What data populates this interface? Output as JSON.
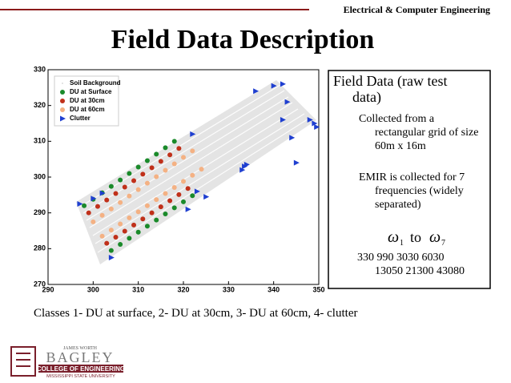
{
  "header": {
    "department": "Electrical & Computer Engineering"
  },
  "title": "Field Data Description",
  "chart_data": {
    "type": "scatter",
    "xlim": [
      290,
      350
    ],
    "ylim": [
      270,
      330
    ],
    "xticks": [
      290,
      300,
      310,
      320,
      330,
      340,
      350
    ],
    "yticks": [
      270,
      280,
      290,
      300,
      310,
      320,
      330
    ],
    "legend": "upper left",
    "series": [
      {
        "name": "Soil Background",
        "color": "#dcdcdc",
        "marker": "point",
        "x": [],
        "values": []
      },
      {
        "name": "DU at Surface",
        "color": "#1a8a2a",
        "marker": "circle",
        "x": [
          298,
          300,
          302,
          304,
          306,
          308,
          310,
          312,
          314,
          316,
          318,
          304,
          306,
          308,
          310,
          312,
          314,
          316,
          318,
          320,
          322
        ],
        "values": [
          292,
          293.8,
          295.6,
          297.4,
          299.2,
          301,
          302.8,
          304.6,
          306.4,
          308.2,
          310,
          279.5,
          281.2,
          282.9,
          284.6,
          286.3,
          288,
          289.7,
          291.4,
          293.1,
          294.8
        ]
      },
      {
        "name": "DU at 30cm",
        "color": "#c0301a",
        "marker": "circle",
        "x": [
          299,
          301,
          303,
          305,
          307,
          309,
          311,
          313,
          315,
          317,
          319,
          303,
          305,
          307,
          309,
          311,
          313,
          315,
          317,
          319,
          321
        ],
        "values": [
          290,
          291.8,
          293.6,
          295.4,
          297.2,
          299,
          300.8,
          302.6,
          304.4,
          306.2,
          308,
          281.5,
          283.2,
          284.9,
          286.6,
          288.3,
          290,
          291.7,
          293.4,
          295.1,
          296.8
        ]
      },
      {
        "name": "DU at 60cm",
        "color": "#f4b183",
        "marker": "circle",
        "x": [
          300,
          302,
          304,
          306,
          308,
          310,
          312,
          314,
          316,
          318,
          320,
          322,
          302,
          304,
          306,
          308,
          310,
          312,
          314,
          316,
          318,
          320,
          322,
          324
        ],
        "values": [
          287.5,
          289.3,
          291.1,
          292.9,
          294.7,
          296.5,
          298.3,
          300.1,
          301.9,
          303.7,
          305.5,
          307.3,
          283.5,
          285.2,
          286.9,
          288.6,
          290.3,
          292,
          293.7,
          295.4,
          297.1,
          298.8,
          300.5,
          302.2
        ]
      },
      {
        "name": "Clutter",
        "color": "#1f3fd0",
        "marker": "triangle",
        "x": [
          297,
          300,
          302,
          304,
          322,
          323,
          321,
          325,
          333,
          333.5,
          334,
          336,
          340,
          342,
          343,
          344,
          345,
          342,
          348,
          349,
          349.5
        ],
        "values": [
          292.5,
          294,
          295.5,
          277.5,
          312,
          296,
          291,
          294.5,
          302,
          303,
          303.5,
          324,
          325.5,
          326,
          321,
          311,
          304,
          316,
          316,
          315,
          314
        ]
      }
    ]
  },
  "box": {
    "heading": [
      "Field Data (raw test",
      "data)"
    ],
    "bullet1": [
      "Collected from a",
      "rectangular grid of size",
      "60m x 16m"
    ],
    "bullet2": [
      "EMIR is collected for 7",
      "frequencies  (widely",
      "separated)"
    ],
    "omega": {
      "symbol_from": "ω",
      "sub_from": "1",
      "to": "to",
      "symbol_to": "ω",
      "sub_to": "7"
    },
    "frequencies": [
      "330  990  3030   6030",
      "13050  21300  43080"
    ]
  },
  "caption": "Classes 1- DU at surface, 2- DU at 30cm, 3- DU at 60cm, 4- clutter",
  "logo": {
    "top": "JAMES WORTH",
    "name": "BAGLEY",
    "college": "COLLEGE OF ENGINEERING",
    "university": "MISSISSIPPI STATE UNIVERSITY"
  }
}
